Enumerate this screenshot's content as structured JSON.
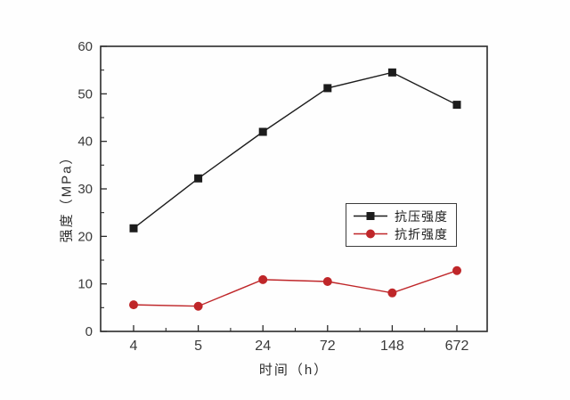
{
  "chart_data": {
    "type": "line",
    "title": "",
    "xlabel": "时间（h）",
    "ylabel": "强度（MPa）",
    "categories": [
      "4",
      "5",
      "24",
      "72",
      "148",
      "672"
    ],
    "series": [
      {
        "name": "抗压强度",
        "marker": "square",
        "color": "#1c1c1c",
        "values": [
          21.7,
          32.2,
          42.0,
          51.2,
          54.5,
          47.7
        ]
      },
      {
        "name": "抗折强度",
        "marker": "circle",
        "color": "#bf2629",
        "values": [
          5.6,
          5.3,
          10.9,
          10.5,
          8.1,
          12.8
        ]
      }
    ],
    "ylim": [
      0,
      60
    ],
    "yticks": [
      0,
      10,
      20,
      30,
      40,
      50,
      60
    ],
    "y_minor_step": 5,
    "grid": false,
    "legend_position": "middle-right",
    "axis_color": "#2b2b2b"
  }
}
